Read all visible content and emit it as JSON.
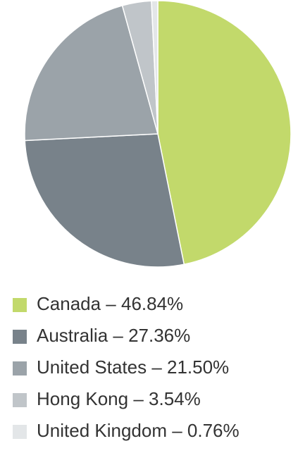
{
  "chart_data": {
    "type": "pie",
    "categories": [
      "Canada – 46.84%",
      "Australia – 27.36%",
      "United States – 21.50%",
      "Hong Kong – 3.54%",
      "United Kingdom – 0.76%"
    ],
    "values": [
      46.84,
      27.36,
      21.5,
      3.54,
      0.76
    ],
    "colors": [
      "#c2d96b",
      "#78828a",
      "#9ba3a9",
      "#c0c5c9",
      "#e3e6e8"
    ],
    "legend": "bottom"
  }
}
